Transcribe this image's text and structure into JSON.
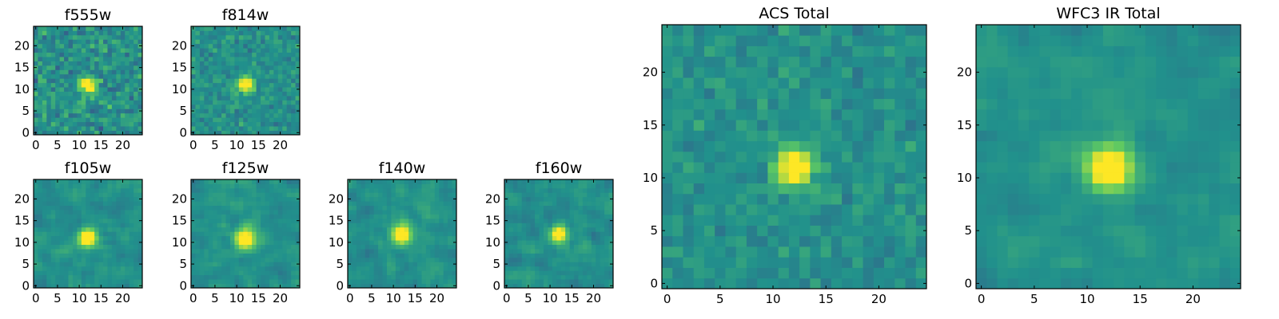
{
  "colormap": [
    "#440154",
    "#3b528b",
    "#21918c",
    "#5ec962",
    "#fde725"
  ],
  "chart_data": [
    {
      "type": "heatmap",
      "title": "f555w",
      "grid": [
        25,
        25
      ],
      "xlim": [
        -0.5,
        24.5
      ],
      "ylim": [
        -0.5,
        24.5
      ],
      "xticks": [
        0,
        5,
        10,
        15,
        20
      ],
      "yticks": [
        0,
        5,
        10,
        15,
        20
      ],
      "source_peak": [
        12,
        11
      ],
      "source_width": 1.2,
      "noise": 0.32,
      "smoothing": 0,
      "seed": 11
    },
    {
      "type": "heatmap",
      "title": "f814w",
      "grid": [
        25,
        25
      ],
      "xlim": [
        -0.5,
        24.5
      ],
      "ylim": [
        -0.5,
        24.5
      ],
      "xticks": [
        0,
        5,
        10,
        15,
        20
      ],
      "yticks": [
        0,
        5,
        10,
        15,
        20
      ],
      "source_peak": [
        12,
        11
      ],
      "source_width": 1.2,
      "noise": 0.22,
      "smoothing": 0,
      "seed": 23
    },
    {
      "type": "heatmap",
      "title": "f105w",
      "grid": [
        25,
        25
      ],
      "xlim": [
        -0.5,
        24.5
      ],
      "ylim": [
        -0.5,
        24.5
      ],
      "xticks": [
        0,
        5,
        10,
        15,
        20
      ],
      "yticks": [
        0,
        5,
        10,
        15,
        20
      ],
      "source_peak": [
        12,
        11
      ],
      "source_width": 1.4,
      "noise": 0.2,
      "smoothing": 1,
      "seed": 37
    },
    {
      "type": "heatmap",
      "title": "f125w",
      "grid": [
        25,
        25
      ],
      "xlim": [
        -0.5,
        24.5
      ],
      "ylim": [
        -0.5,
        24.5
      ],
      "xticks": [
        0,
        5,
        10,
        15,
        20
      ],
      "yticks": [
        0,
        5,
        10,
        15,
        20
      ],
      "source_peak": [
        12,
        11
      ],
      "source_width": 1.6,
      "noise": 0.2,
      "smoothing": 1,
      "seed": 41
    },
    {
      "type": "heatmap",
      "title": "f140w",
      "grid": [
        25,
        25
      ],
      "xlim": [
        -0.5,
        24.5
      ],
      "ylim": [
        -0.5,
        24.5
      ],
      "xticks": [
        0,
        5,
        10,
        15,
        20
      ],
      "yticks": [
        0,
        5,
        10,
        15,
        20
      ],
      "source_peak": [
        12,
        12
      ],
      "source_width": 1.6,
      "noise": 0.2,
      "smoothing": 1,
      "seed": 53
    },
    {
      "type": "heatmap",
      "title": "f160w",
      "grid": [
        25,
        25
      ],
      "xlim": [
        -0.5,
        24.5
      ],
      "ylim": [
        -0.5,
        24.5
      ],
      "xticks": [
        0,
        5,
        10,
        15,
        20
      ],
      "yticks": [
        0,
        5,
        10,
        15,
        20
      ],
      "source_peak": [
        12,
        12
      ],
      "source_width": 1.3,
      "noise": 0.22,
      "smoothing": 1,
      "seed": 67
    },
    {
      "type": "heatmap",
      "title": "ACS Total",
      "grid": [
        25,
        25
      ],
      "xlim": [
        -0.5,
        24.5
      ],
      "ylim": [
        -0.5,
        24.5
      ],
      "xticks": [
        0,
        5,
        10,
        15,
        20
      ],
      "yticks": [
        0,
        5,
        10,
        15,
        20
      ],
      "source_peak": [
        12,
        11
      ],
      "source_width": 1.2,
      "noise": 0.18,
      "smoothing": 0,
      "seed": 79
    },
    {
      "type": "heatmap",
      "title": "WFC3 IR Total",
      "grid": [
        25,
        25
      ],
      "xlim": [
        -0.5,
        24.5
      ],
      "ylim": [
        -0.5,
        24.5
      ],
      "xticks": [
        0,
        5,
        10,
        15,
        20
      ],
      "yticks": [
        0,
        5,
        10,
        15,
        20
      ],
      "source_peak": [
        12,
        11
      ],
      "source_width": 1.5,
      "noise": 0.16,
      "smoothing": 1,
      "seed": 97
    }
  ]
}
